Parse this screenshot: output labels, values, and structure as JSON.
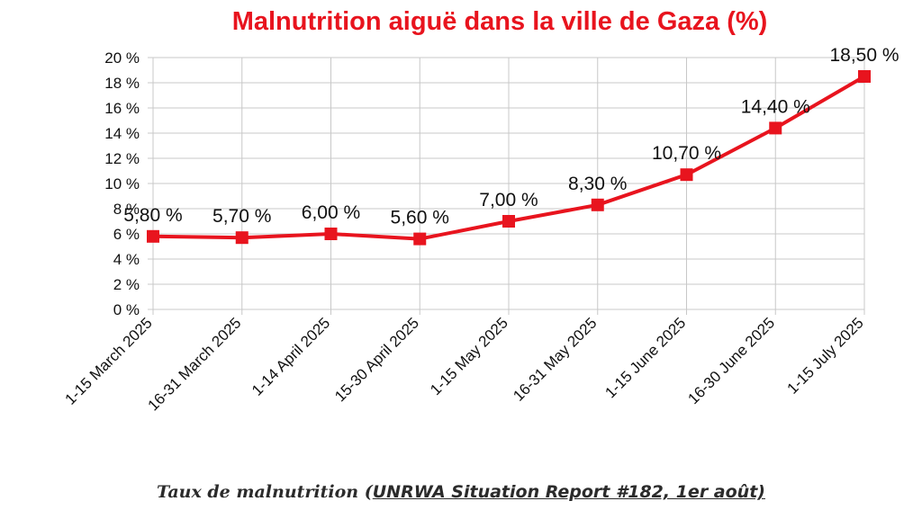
{
  "chart_data": {
    "type": "line",
    "title": "Malnutrition aiguë dans la ville de Gaza (%)",
    "categories": [
      "1-15 March 2025",
      "16-31 March 2025",
      "1-14 April 2025",
      "15-30 April 2025",
      "1-15 May 2025",
      "16-31 May 2025",
      "1-15 June 2025",
      "16-30 June 2025",
      "1-15 July 2025"
    ],
    "values": [
      5.8,
      5.7,
      6.0,
      5.6,
      7.0,
      8.3,
      10.7,
      14.4,
      18.5
    ],
    "data_labels": [
      "5,80 %",
      "5,70 %",
      "6,00 %",
      "5,60 %",
      "7,00 %",
      "8,30 %",
      "10,70 %",
      "14,40 %",
      "18,50 %"
    ],
    "yticks": [
      "0 %",
      "2 %",
      "4 %",
      "6 %",
      "8 %",
      "10 %",
      "12 %",
      "14 %",
      "16 %",
      "18 %",
      "20 %"
    ],
    "ylim": [
      0,
      20
    ],
    "grid": true,
    "legend": "none",
    "line_color": "#e8141e",
    "title_color": "#e8141e"
  },
  "caption": {
    "prefix": "Taux de malnutrition (",
    "source": "UNRWA Situation Report #182, 1er août)"
  }
}
